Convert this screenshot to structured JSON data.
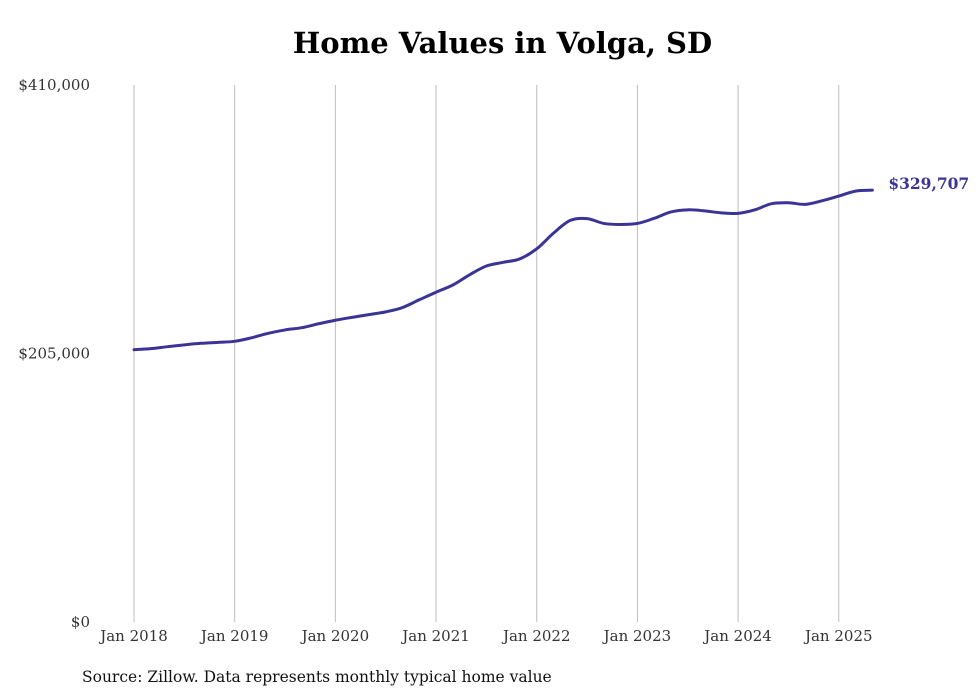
{
  "chart_data": {
    "type": "line",
    "title": "Home Values in Volga, SD",
    "xlabel": "",
    "ylabel": "",
    "ylim": [
      0,
      410000
    ],
    "y_ticks": [
      "$0",
      "$205,000",
      "$410,000"
    ],
    "y_tick_values": [
      0,
      205000,
      410000
    ],
    "x_ticks": [
      "Jan 2018",
      "Jan 2019",
      "Jan 2020",
      "Jan 2021",
      "Jan 2022",
      "Jan 2023",
      "Jan 2024",
      "Jan 2025"
    ],
    "x_tick_values": [
      2018.0,
      2019.0,
      2020.0,
      2021.0,
      2022.0,
      2023.0,
      2024.0,
      2025.0
    ],
    "xlim": [
      2018.0,
      2025.35
    ],
    "grid": "vertical",
    "series": [
      {
        "color": "#3a3497",
        "x": [
          2018.0,
          2018.1667,
          2018.3333,
          2018.5,
          2018.6667,
          2018.8333,
          2019.0,
          2019.1667,
          2019.3333,
          2019.5,
          2019.6667,
          2019.8333,
          2020.0,
          2020.1667,
          2020.3333,
          2020.5,
          2020.6667,
          2020.8333,
          2021.0,
          2021.1667,
          2021.3333,
          2021.5,
          2021.6667,
          2021.8333,
          2022.0,
          2022.1667,
          2022.3333,
          2022.5,
          2022.6667,
          2022.8333,
          2023.0,
          2023.1667,
          2023.3333,
          2023.5,
          2023.6667,
          2023.8333,
          2024.0,
          2024.1667,
          2024.3333,
          2024.5,
          2024.6667,
          2024.8333,
          2025.0,
          2025.1667,
          2025.3333
        ],
        "y": [
          207900,
          208700,
          210200,
          211600,
          212800,
          213500,
          214300,
          217000,
          220400,
          223000,
          224700,
          227700,
          230400,
          232600,
          234700,
          236800,
          240100,
          246000,
          251800,
          257300,
          265100,
          271800,
          274600,
          277300,
          284900,
          296900,
          306600,
          308000,
          304300,
          303500,
          304300,
          308200,
          313100,
          314700,
          313900,
          312400,
          312000,
          314700,
          319400,
          320100,
          318900,
          321600,
          325200,
          329000,
          329707
        ]
      }
    ],
    "end_label": "$329,707"
  },
  "footer": {
    "source": "Source: Zillow. Data represents monthly typical home value"
  }
}
